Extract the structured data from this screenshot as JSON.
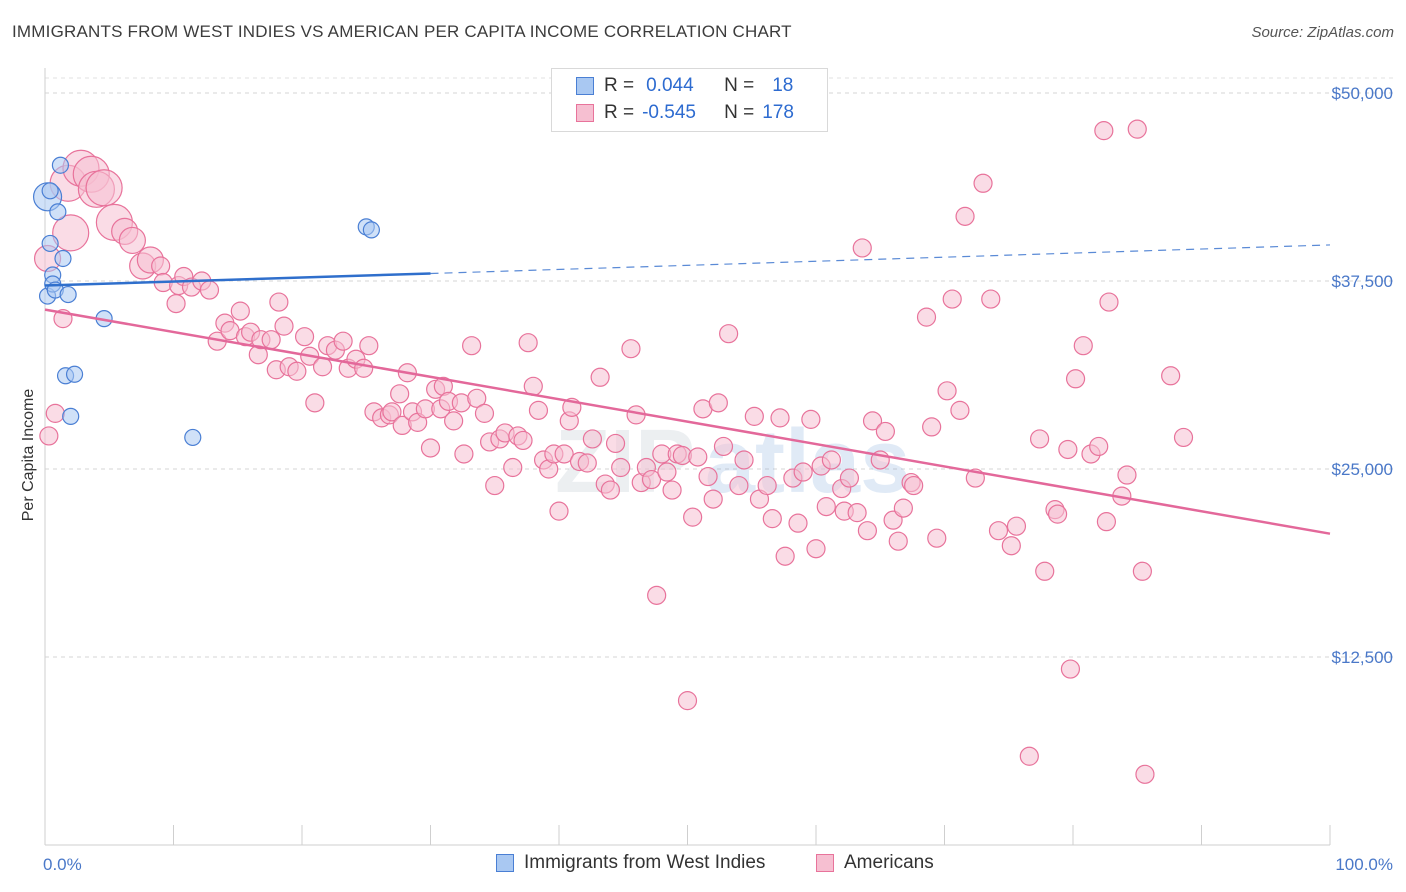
{
  "title": "IMMIGRANTS FROM WEST INDIES VS AMERICAN PER CAPITA INCOME CORRELATION CHART",
  "source": "Source: ZipAtlas.com",
  "colors": {
    "blue": "#4a7fd4",
    "blue_fill": "#a9c8f2",
    "pink": "#e8739b",
    "pink_fill": "#f6bfd1",
    "tick_text": "#4a78c8"
  },
  "legend": {
    "rows": [
      {
        "r_label": "R =",
        "r_value": "0.044",
        "n_label": "N =",
        "n_value": "18"
      },
      {
        "r_label": "R =",
        "r_value": "-0.545",
        "n_label": "N =",
        "n_value": "178"
      }
    ]
  },
  "bottom_legend": {
    "blue_label": "Immigrants from West Indies",
    "pink_label": "Americans"
  },
  "chart_data": {
    "type": "scatter",
    "title": "IMMIGRANTS FROM WEST INDIES VS AMERICAN PER CAPITA INCOME CORRELATION CHART",
    "xlabel": "",
    "ylabel": "Per Capita Income",
    "xlim": [
      0,
      100
    ],
    "ylim": [
      0,
      51000
    ],
    "x_tick_labels": [
      "0.0%",
      "100.0%"
    ],
    "y_ticks": [
      12500,
      25000,
      37500,
      50000
    ],
    "y_tick_labels": [
      "$12,500",
      "$25,000",
      "$37,500",
      "$50,000"
    ],
    "grid": "horizontal dashed",
    "legend_position": "top-center",
    "series": [
      {
        "name": "Immigrants from West Indies",
        "color": "#4a7fd4",
        "points": [
          [
            0.2,
            43.1
          ],
          [
            0.2,
            36.5
          ],
          [
            0.4,
            40.0
          ],
          [
            0.4,
            43.5
          ],
          [
            0.6,
            37.9
          ],
          [
            0.6,
            37.3
          ],
          [
            0.8,
            36.9
          ],
          [
            1.0,
            42.1
          ],
          [
            1.2,
            45.2
          ],
          [
            1.4,
            39.0
          ],
          [
            1.6,
            31.2
          ],
          [
            1.8,
            36.6
          ],
          [
            2.0,
            28.5
          ],
          [
            2.3,
            31.3
          ],
          [
            4.6,
            35.0
          ],
          [
            11.5,
            27.1
          ],
          [
            25.0,
            41.1
          ],
          [
            25.4,
            40.9
          ]
        ],
        "trend": {
          "x": [
            0,
            30,
            100
          ],
          "y": [
            37.2,
            38.0,
            39.9
          ],
          "solid_until": 30
        }
      },
      {
        "name": "Americans",
        "color": "#e8739b",
        "points": [
          [
            0.3,
            27.2
          ],
          [
            0.8,
            28.7
          ],
          [
            1.4,
            35.0
          ],
          [
            1.8,
            44.0
          ],
          [
            2.0,
            40.7
          ],
          [
            2.8,
            45.0
          ],
          [
            3.6,
            44.6
          ],
          [
            4.0,
            43.6
          ],
          [
            4.6,
            43.7
          ],
          [
            5.4,
            41.4
          ],
          [
            6.2,
            40.8
          ],
          [
            6.8,
            40.2
          ],
          [
            7.6,
            38.5
          ],
          [
            8.2,
            38.9
          ],
          [
            9.0,
            38.5
          ],
          [
            9.2,
            37.4
          ],
          [
            10.2,
            36.0
          ],
          [
            10.4,
            37.2
          ],
          [
            10.8,
            37.8
          ],
          [
            11.4,
            37.1
          ],
          [
            12.2,
            37.5
          ],
          [
            12.8,
            36.9
          ],
          [
            13.4,
            33.5
          ],
          [
            14.0,
            34.7
          ],
          [
            14.4,
            34.2
          ],
          [
            15.2,
            35.5
          ],
          [
            15.6,
            33.8
          ],
          [
            16.0,
            34.1
          ],
          [
            16.6,
            32.6
          ],
          [
            16.8,
            33.6
          ],
          [
            17.6,
            33.6
          ],
          [
            18.0,
            31.6
          ],
          [
            18.2,
            36.1
          ],
          [
            18.6,
            34.5
          ],
          [
            19.0,
            31.8
          ],
          [
            19.6,
            31.5
          ],
          [
            20.2,
            33.8
          ],
          [
            20.6,
            32.5
          ],
          [
            21.0,
            29.4
          ],
          [
            21.6,
            31.8
          ],
          [
            22.0,
            33.2
          ],
          [
            22.6,
            32.9
          ],
          [
            23.2,
            33.5
          ],
          [
            23.6,
            31.7
          ],
          [
            24.2,
            32.3
          ],
          [
            24.8,
            31.7
          ],
          [
            25.2,
            33.2
          ],
          [
            25.6,
            28.8
          ],
          [
            26.2,
            28.4
          ],
          [
            26.8,
            28.6
          ],
          [
            27.0,
            28.8
          ],
          [
            27.6,
            30.0
          ],
          [
            27.8,
            27.9
          ],
          [
            28.2,
            31.4
          ],
          [
            28.6,
            28.8
          ],
          [
            29.0,
            28.1
          ],
          [
            29.6,
            29.0
          ],
          [
            30.0,
            26.4
          ],
          [
            30.4,
            30.3
          ],
          [
            30.8,
            29.0
          ],
          [
            31.0,
            30.5
          ],
          [
            31.4,
            29.5
          ],
          [
            31.8,
            28.2
          ],
          [
            32.4,
            29.4
          ],
          [
            32.6,
            26.0
          ],
          [
            33.2,
            33.2
          ],
          [
            33.6,
            29.7
          ],
          [
            34.2,
            28.7
          ],
          [
            34.6,
            26.8
          ],
          [
            35.0,
            23.9
          ],
          [
            35.4,
            27.0
          ],
          [
            35.8,
            27.4
          ],
          [
            36.4,
            25.1
          ],
          [
            36.8,
            27.2
          ],
          [
            37.2,
            26.9
          ],
          [
            37.6,
            33.4
          ],
          [
            38.0,
            30.5
          ],
          [
            38.4,
            28.9
          ],
          [
            38.8,
            25.6
          ],
          [
            39.2,
            25.0
          ],
          [
            39.6,
            26.0
          ],
          [
            40.0,
            22.2
          ],
          [
            40.4,
            26.0
          ],
          [
            40.8,
            28.2
          ],
          [
            41.0,
            29.1
          ],
          [
            41.6,
            25.5
          ],
          [
            42.2,
            25.4
          ],
          [
            42.6,
            27.0
          ],
          [
            43.2,
            31.1
          ],
          [
            43.6,
            24.0
          ],
          [
            44.0,
            23.6
          ],
          [
            44.4,
            26.7
          ],
          [
            44.8,
            25.1
          ],
          [
            45.6,
            33.0
          ],
          [
            46.0,
            28.6
          ],
          [
            46.4,
            24.1
          ],
          [
            46.8,
            25.1
          ],
          [
            47.2,
            24.3
          ],
          [
            47.6,
            16.6
          ],
          [
            48.0,
            26.0
          ],
          [
            48.4,
            24.8
          ],
          [
            48.8,
            23.6
          ],
          [
            49.2,
            26.0
          ],
          [
            49.6,
            25.9
          ],
          [
            50.0,
            9.6
          ],
          [
            50.4,
            21.8
          ],
          [
            50.8,
            25.8
          ],
          [
            51.2,
            29.0
          ],
          [
            51.6,
            24.5
          ],
          [
            52.0,
            23.0
          ],
          [
            52.4,
            29.4
          ],
          [
            52.8,
            26.5
          ],
          [
            53.2,
            34.0
          ],
          [
            54.0,
            23.9
          ],
          [
            54.4,
            25.6
          ],
          [
            55.2,
            28.5
          ],
          [
            55.6,
            23.0
          ],
          [
            56.2,
            23.9
          ],
          [
            56.6,
            21.7
          ],
          [
            57.2,
            28.4
          ],
          [
            57.6,
            19.2
          ],
          [
            58.2,
            24.4
          ],
          [
            58.6,
            21.4
          ],
          [
            59.0,
            24.8
          ],
          [
            59.6,
            28.3
          ],
          [
            60.0,
            19.7
          ],
          [
            60.4,
            25.2
          ],
          [
            60.8,
            22.5
          ],
          [
            61.2,
            25.6
          ],
          [
            62.0,
            23.7
          ],
          [
            62.2,
            22.2
          ],
          [
            62.6,
            24.4
          ],
          [
            63.2,
            22.1
          ],
          [
            63.6,
            39.7
          ],
          [
            64.0,
            20.9
          ],
          [
            64.4,
            28.2
          ],
          [
            65.0,
            25.6
          ],
          [
            65.4,
            27.5
          ],
          [
            66.0,
            21.6
          ],
          [
            66.4,
            20.2
          ],
          [
            66.8,
            22.4
          ],
          [
            67.4,
            24.1
          ],
          [
            67.6,
            23.9
          ],
          [
            68.6,
            35.1
          ],
          [
            69.0,
            27.8
          ],
          [
            69.4,
            20.4
          ],
          [
            70.2,
            30.2
          ],
          [
            70.6,
            36.3
          ],
          [
            71.2,
            28.9
          ],
          [
            71.6,
            41.8
          ],
          [
            72.4,
            24.4
          ],
          [
            73.0,
            44.0
          ],
          [
            73.6,
            36.3
          ],
          [
            74.2,
            20.9
          ],
          [
            75.2,
            19.9
          ],
          [
            75.6,
            21.2
          ],
          [
            76.6,
            5.9
          ],
          [
            77.4,
            27.0
          ],
          [
            77.8,
            18.2
          ],
          [
            78.6,
            22.3
          ],
          [
            78.8,
            22.0
          ],
          [
            79.6,
            26.3
          ],
          [
            79.8,
            11.7
          ],
          [
            80.2,
            31.0
          ],
          [
            80.8,
            33.2
          ],
          [
            81.4,
            26.0
          ],
          [
            82.0,
            26.5
          ],
          [
            82.4,
            47.5
          ],
          [
            82.6,
            21.5
          ],
          [
            82.8,
            36.1
          ],
          [
            83.8,
            23.2
          ],
          [
            84.2,
            24.6
          ],
          [
            85.0,
            47.6
          ],
          [
            85.4,
            18.2
          ],
          [
            85.6,
            4.7
          ],
          [
            87.6,
            31.2
          ],
          [
            88.6,
            27.1
          ],
          [
            0.2,
            39.0
          ]
        ],
        "trend": {
          "x": [
            0,
            100
          ],
          "y": [
            35.6,
            20.7
          ]
        }
      }
    ]
  }
}
